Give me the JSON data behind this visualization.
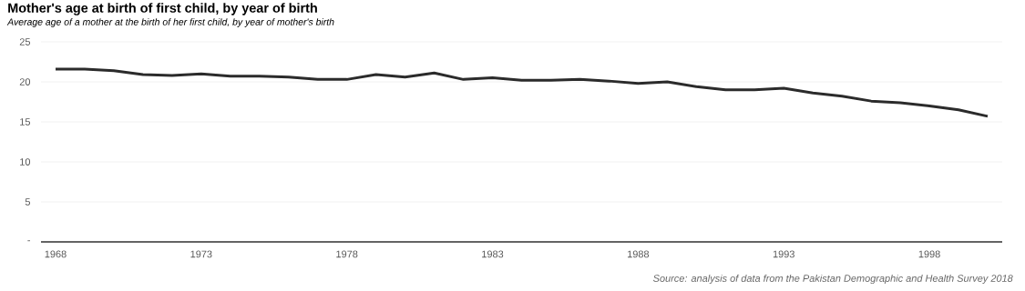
{
  "chart_data": {
    "type": "line",
    "title": "Mother's age at birth of first child, by year of birth",
    "subtitle": "Average age of a mother at the birth of her first child, by year of mother's birth",
    "x": [
      1968,
      1969,
      1970,
      1971,
      1972,
      1973,
      1974,
      1975,
      1976,
      1977,
      1978,
      1979,
      1980,
      1981,
      1982,
      1983,
      1984,
      1985,
      1986,
      1987,
      1988,
      1989,
      1990,
      1991,
      1992,
      1993,
      1994,
      1995,
      1996,
      1997,
      1998,
      1999,
      2000
    ],
    "series": [
      {
        "color": "#2b2b2b",
        "values": [
          21.6,
          21.6,
          21.4,
          20.9,
          20.8,
          21.0,
          20.7,
          20.7,
          20.6,
          20.3,
          20.3,
          20.9,
          20.6,
          21.1,
          20.3,
          20.5,
          20.2,
          20.2,
          20.3,
          20.1,
          19.8,
          20.0,
          19.4,
          19.0,
          19.0,
          19.2,
          18.6,
          18.2,
          17.6,
          17.4,
          17.0,
          16.5,
          15.7
        ]
      }
    ],
    "xlim": [
      1967.5,
      2000.5
    ],
    "xticks": [
      1968,
      1973,
      1978,
      1983,
      1988,
      1993,
      1998
    ],
    "ylim": [
      0,
      25
    ],
    "yticks": [
      {
        "value": 0,
        "label": "-"
      },
      5,
      10,
      15,
      20,
      25
    ],
    "grid": "y",
    "marker": "none",
    "line_style": "solid",
    "annotations": [
      "Source: analysis of data from the Pakistan Demographic and Health Survey 2018"
    ]
  }
}
